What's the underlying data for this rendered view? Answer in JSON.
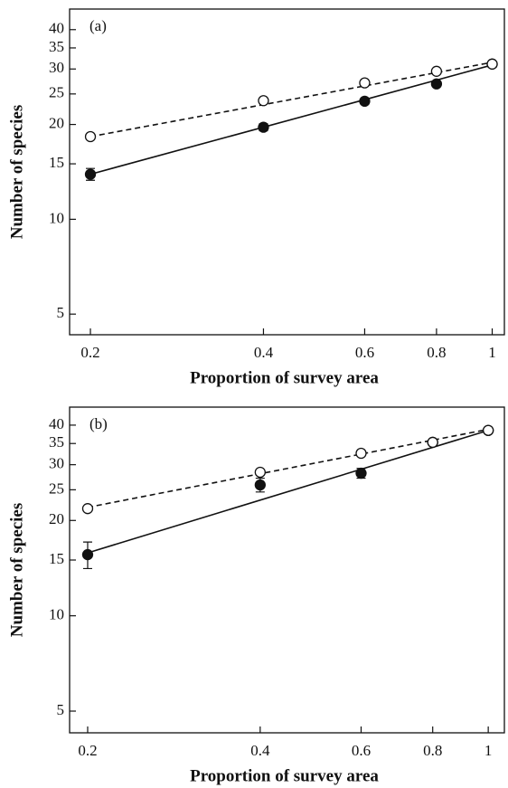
{
  "chart_data": [
    {
      "type": "scatter",
      "label": "(a)",
      "xlabel": "Proportion of survey area",
      "ylabel": "Number of species",
      "xscale": "log",
      "yscale": "log",
      "xlim": [
        0.184,
        1.05
      ],
      "ylim": [
        4.3,
        46.5
      ],
      "xticks": [
        0.2,
        0.4,
        0.6,
        0.8,
        1
      ],
      "yticks": [
        5,
        10,
        15,
        20,
        25,
        30,
        35,
        40
      ],
      "series": [
        {
          "x": [
            0.2,
            0.4,
            0.6,
            0.8,
            1
          ],
          "values": [
            13.9,
            19.6,
            23.7,
            26.9,
            31.1
          ],
          "errors": [
            0.6,
            0.5,
            0.4,
            0.5,
            0.3
          ],
          "marker": "filled",
          "color": "#111111"
        },
        {
          "x": [
            0.2,
            0.4,
            0.6,
            0.8,
            1
          ],
          "values": [
            18.3,
            23.8,
            27.1,
            29.5,
            31.1
          ],
          "marker": "open",
          "color": "#111111"
        },
        {
          "x": [
            0.2,
            1
          ],
          "values": [
            13.9,
            30.9
          ],
          "line": "solid",
          "color": "#111111"
        },
        {
          "x": [
            0.2,
            1
          ],
          "values": [
            18.3,
            31.5
          ],
          "line": "dashed",
          "color": "#111111"
        }
      ]
    },
    {
      "type": "scatter",
      "label": "(b)",
      "xlabel": "Proportion of survey area",
      "ylabel": "Number of species",
      "xscale": "log",
      "yscale": "log",
      "xlim": [
        0.186,
        1.067
      ],
      "ylim": [
        4.27,
        45.6
      ],
      "xticks": [
        0.2,
        0.4,
        0.6,
        0.8,
        1
      ],
      "yticks": [
        5,
        10,
        15,
        20,
        25,
        30,
        35,
        40
      ],
      "series": [
        {
          "x": [
            0.2,
            0.4,
            0.6,
            0.8,
            1
          ],
          "values": [
            15.6,
            25.9,
            28.2,
            35.3,
            38.5
          ],
          "errors": [
            1.5,
            1.3,
            1.0,
            0.5,
            0.4
          ],
          "marker": "filled",
          "color": "#111111"
        },
        {
          "x": [
            0.2,
            0.4,
            0.6,
            0.8,
            1
          ],
          "values": [
            21.8,
            28.4,
            32.6,
            35.3,
            38.5
          ],
          "marker": "open",
          "color": "#111111"
        },
        {
          "x": [
            0.2,
            1
          ],
          "values": [
            15.8,
            38.5
          ],
          "line": "solid",
          "color": "#111111"
        },
        {
          "x": [
            0.2,
            1
          ],
          "values": [
            22,
            38.8
          ],
          "line": "dashed",
          "color": "#111111"
        }
      ]
    }
  ]
}
